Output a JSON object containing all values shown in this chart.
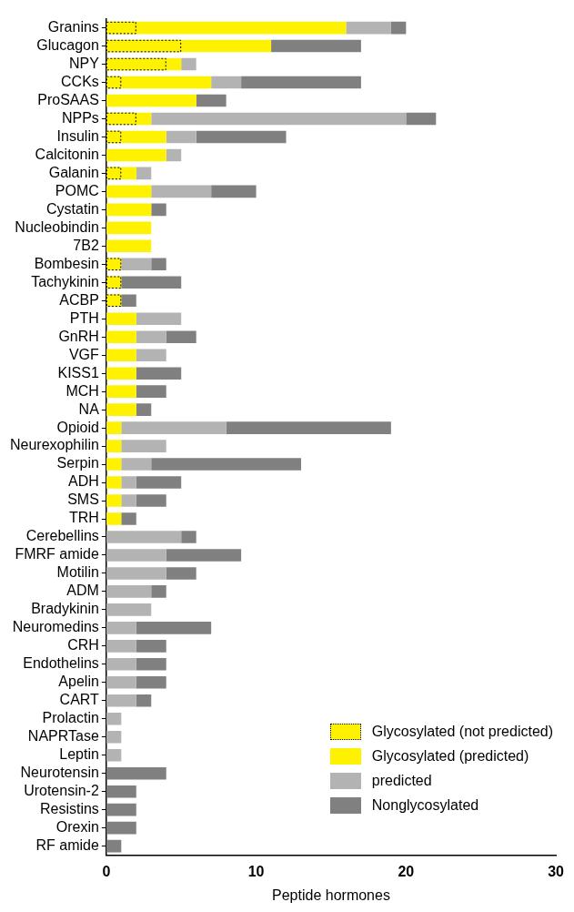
{
  "chart_data": {
    "type": "bar",
    "orientation": "horizontal",
    "stacked": true,
    "xlabel": "Peptide hormones",
    "categories": [
      "Granins",
      "Glucagon",
      "NPY",
      "CCKs",
      "ProSAAS",
      "NPPs",
      "Insulin",
      "Calcitonin",
      "Galanin",
      "POMC",
      "Cystatin",
      "Nucleobindin",
      "7B2",
      "Bombesin",
      "Tachykinin",
      "ACBP",
      "PTH",
      "GnRH",
      "VGF",
      "KISS1",
      "MCH",
      "NA",
      "Opioid",
      "Neurexophilin",
      "Serpin",
      "ADH",
      "SMS",
      "TRH",
      "Cerebellins",
      "FMRF amide",
      "Motilin",
      "ADM",
      "Bradykinin",
      "Neuromedins",
      "CRH",
      "Endothelins",
      "Apelin",
      "CART",
      "Prolactin",
      "NAPRTase",
      "Leptin",
      "Neurotensin",
      "Urotensin-2",
      "Resistins",
      "Orexin",
      "RF amide"
    ],
    "series": [
      {
        "name": "Glycosylated (not predicted)",
        "color": "#fff200",
        "line_style": "dotted",
        "values": [
          2,
          5,
          4,
          1,
          0,
          2,
          1,
          0,
          1,
          0,
          0,
          0,
          0,
          1,
          1,
          1,
          0,
          0,
          0,
          0,
          0,
          0,
          0,
          0,
          0,
          0,
          0,
          0,
          0,
          0,
          0,
          0,
          0,
          0,
          0,
          0,
          0,
          0,
          0,
          0,
          0,
          0,
          0,
          0,
          0,
          0
        ]
      },
      {
        "name": "Glycosylated (predicted)",
        "color": "#fff200",
        "values": [
          14,
          6,
          1,
          6,
          6,
          1,
          3,
          4,
          1,
          3,
          3,
          3,
          3,
          0,
          0,
          0,
          2,
          2,
          2,
          2,
          2,
          2,
          1,
          1,
          1,
          1,
          1,
          1,
          0,
          0,
          0,
          0,
          0,
          0,
          0,
          0,
          0,
          0,
          0,
          0,
          0,
          0,
          0,
          0,
          0,
          0
        ]
      },
      {
        "name": "predicted",
        "color": "#b3b3b3",
        "values": [
          3,
          0,
          1,
          2,
          0,
          17,
          2,
          1,
          1,
          4,
          0,
          0,
          0,
          2,
          0,
          0,
          3,
          2,
          2,
          0,
          0,
          0,
          7,
          3,
          2,
          1,
          1,
          0,
          5,
          4,
          4,
          3,
          3,
          2,
          2,
          2,
          2,
          2,
          1,
          1,
          1,
          0,
          0,
          0,
          0,
          0
        ]
      },
      {
        "name": "Nonglycosylated",
        "color": "#808080",
        "values": [
          1,
          6,
          0,
          8,
          2,
          2,
          6,
          0,
          0,
          3,
          1,
          0,
          0,
          1,
          4,
          1,
          0,
          2,
          0,
          3,
          2,
          1,
          11,
          0,
          10,
          3,
          2,
          1,
          1,
          5,
          2,
          1,
          0,
          5,
          2,
          2,
          2,
          1,
          0,
          0,
          0,
          4,
          2,
          2,
          2,
          1
        ]
      }
    ],
    "xlim": [
      0,
      30
    ],
    "xticks": [
      0,
      10,
      20,
      30
    ],
    "grid": false,
    "legend": "bottom right"
  }
}
